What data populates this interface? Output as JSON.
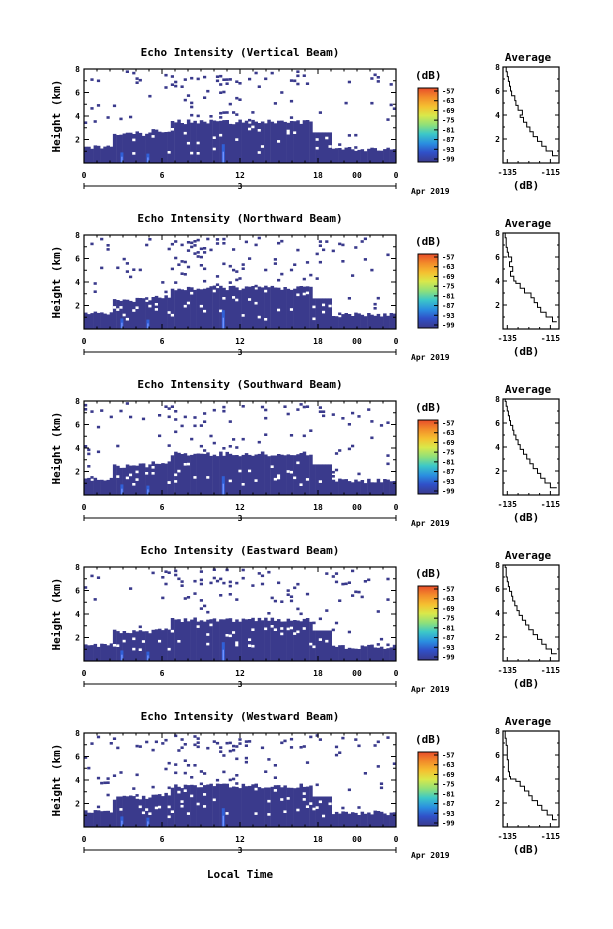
{
  "chart_data": [
    {
      "type": "heatmap",
      "title": "Echo Intensity (Vertical Beam)",
      "ylabel": "Height (km)",
      "ylim": [
        0,
        8
      ],
      "yticks": [
        "2",
        "4",
        "6",
        "8"
      ],
      "xlim": [
        0,
        24
      ],
      "xticks": [
        "0",
        "6",
        "12",
        "18",
        "00",
        "0"
      ],
      "date_tick": "3",
      "date_label": "Apr 2019",
      "colorbar": {
        "unit": "(dB)",
        "ticks": [
          "-57",
          "-63",
          "-69",
          "-75",
          "-81",
          "-87",
          "-93",
          "-99"
        ]
      },
      "average": {
        "title": "Average",
        "xlabel": "(dB)",
        "xticks": [
          "-135",
          "-115"
        ],
        "yticks": [
          "2",
          "4",
          "6",
          "8"
        ],
        "xlim": [
          -137,
          -111
        ],
        "profile": [
          [
            -111.5,
            0.6
          ],
          [
            -114,
            1.0
          ],
          [
            -117,
            1.4
          ],
          [
            -119,
            1.8
          ],
          [
            -121,
            2.2
          ],
          [
            -123,
            2.6
          ],
          [
            -124.5,
            3.0
          ],
          [
            -126,
            3.4
          ],
          [
            -127.5,
            3.8
          ],
          [
            -129,
            4.0
          ],
          [
            -128,
            4.4
          ],
          [
            -130,
            4.8
          ],
          [
            -131,
            5.2
          ],
          [
            -131.5,
            5.6
          ],
          [
            -133,
            6.0
          ],
          [
            -133.5,
            6.4
          ],
          [
            -134,
            6.8
          ],
          [
            -134.5,
            7.2
          ],
          [
            -135,
            7.6
          ],
          [
            -135.5,
            8.0
          ]
        ]
      }
    },
    {
      "type": "heatmap",
      "title": "Echo Intensity (Northward Beam)",
      "ylabel": "Height (km)",
      "ylim": [
        0,
        8
      ],
      "yticks": [
        "2",
        "4",
        "6",
        "8"
      ],
      "xlim": [
        0,
        24
      ],
      "xticks": [
        "0",
        "6",
        "12",
        "18",
        "00",
        "0"
      ],
      "date_tick": "3",
      "date_label": "Apr 2019",
      "colorbar": {
        "unit": "(dB)",
        "ticks": [
          "-57",
          "-63",
          "-69",
          "-75",
          "-81",
          "-87",
          "-93",
          "-99"
        ]
      },
      "average": {
        "title": "Average",
        "xlabel": "(dB)",
        "xticks": [
          "-135",
          "-115"
        ],
        "yticks": [
          "2",
          "4",
          "6",
          "8"
        ],
        "xlim": [
          -137,
          -111
        ],
        "profile": [
          [
            -112,
            0.6
          ],
          [
            -114,
            1.0
          ],
          [
            -117,
            1.4
          ],
          [
            -119.5,
            1.8
          ],
          [
            -121,
            2.2
          ],
          [
            -122.5,
            2.6
          ],
          [
            -124,
            3.0
          ],
          [
            -127,
            3.4
          ],
          [
            -129,
            3.8
          ],
          [
            -131,
            4.0
          ],
          [
            -132,
            4.4
          ],
          [
            -133.5,
            4.8
          ],
          [
            -132.5,
            5.2
          ],
          [
            -134,
            5.6
          ],
          [
            -133,
            6.0
          ],
          [
            -134.5,
            6.4
          ],
          [
            -135,
            6.8
          ],
          [
            -135.5,
            7.2
          ],
          [
            -135.5,
            7.6
          ],
          [
            -136,
            8.0
          ]
        ]
      }
    },
    {
      "type": "heatmap",
      "title": "Echo Intensity (Southward Beam)",
      "ylabel": "Height (km)",
      "ylim": [
        0,
        8
      ],
      "yticks": [
        "2",
        "4",
        "6",
        "8"
      ],
      "xlim": [
        0,
        24
      ],
      "xticks": [
        "0",
        "6",
        "12",
        "18",
        "00",
        "0"
      ],
      "date_tick": "3",
      "date_label": "Apr 2019",
      "colorbar": {
        "unit": "(dB)",
        "ticks": [
          "-57",
          "-63",
          "-69",
          "-75",
          "-81",
          "-87",
          "-93",
          "-99"
        ]
      },
      "average": {
        "title": "Average",
        "xlabel": "(dB)",
        "xticks": [
          "-135",
          "-115"
        ],
        "yticks": [
          "2",
          "4",
          "6",
          "8"
        ],
        "xlim": [
          -137,
          -111
        ],
        "profile": [
          [
            -112,
            0.6
          ],
          [
            -115,
            1.0
          ],
          [
            -117.5,
            1.4
          ],
          [
            -119.5,
            1.8
          ],
          [
            -121,
            2.2
          ],
          [
            -123,
            2.6
          ],
          [
            -124.5,
            3.0
          ],
          [
            -126,
            3.4
          ],
          [
            -127.5,
            3.8
          ],
          [
            -129,
            4.2
          ],
          [
            -130,
            4.6
          ],
          [
            -131,
            5.0
          ],
          [
            -132,
            5.4
          ],
          [
            -132.5,
            5.8
          ],
          [
            -133.5,
            6.2
          ],
          [
            -134,
            6.6
          ],
          [
            -134.5,
            7.0
          ],
          [
            -135,
            7.4
          ],
          [
            -135.5,
            7.8
          ],
          [
            -136,
            8.0
          ]
        ]
      }
    },
    {
      "type": "heatmap",
      "title": "Echo Intensity (Eastward Beam)",
      "ylabel": "Height (km)",
      "ylim": [
        0,
        8
      ],
      "yticks": [
        "2",
        "4",
        "6",
        "8"
      ],
      "xlim": [
        0,
        24
      ],
      "xticks": [
        "0",
        "6",
        "12",
        "18",
        "00",
        "0"
      ],
      "date_tick": "3",
      "date_label": "Apr 2019",
      "colorbar": {
        "unit": "(dB)",
        "ticks": [
          "-57",
          "-63",
          "-69",
          "-75",
          "-81",
          "-87",
          "-93",
          "-99"
        ]
      },
      "average": {
        "title": "Average",
        "xlabel": "(dB)",
        "xticks": [
          "-135",
          "-115"
        ],
        "yticks": [
          "2",
          "4",
          "6",
          "8"
        ],
        "xlim": [
          -137,
          -111
        ],
        "profile": [
          [
            -112,
            0.6
          ],
          [
            -114.5,
            1.0
          ],
          [
            -117,
            1.4
          ],
          [
            -119,
            1.8
          ],
          [
            -121,
            2.2
          ],
          [
            -123,
            2.6
          ],
          [
            -125,
            3.0
          ],
          [
            -126.5,
            3.4
          ],
          [
            -128,
            3.8
          ],
          [
            -129.5,
            4.2
          ],
          [
            -130.5,
            4.6
          ],
          [
            -131.5,
            5.0
          ],
          [
            -132.5,
            5.4
          ],
          [
            -133,
            5.8
          ],
          [
            -134,
            6.2
          ],
          [
            -134.5,
            6.6
          ],
          [
            -135,
            7.0
          ],
          [
            -135.5,
            7.4
          ],
          [
            -135.5,
            7.8
          ],
          [
            -136,
            8.0
          ]
        ]
      }
    },
    {
      "type": "heatmap",
      "title": "Echo Intensity (Westward Beam)",
      "ylabel": "Height (km)",
      "ylim": [
        0,
        8
      ],
      "yticks": [
        "2",
        "4",
        "6",
        "8"
      ],
      "xlim": [
        0,
        24
      ],
      "xticks": [
        "0",
        "6",
        "12",
        "18",
        "00",
        "0"
      ],
      "date_tick": "3",
      "date_label": "Apr 2019",
      "xlabel": "Local Time",
      "colorbar": {
        "unit": "(dB)",
        "ticks": [
          "-57",
          "-63",
          "-69",
          "-75",
          "-81",
          "-87",
          "-93",
          "-99"
        ]
      },
      "average": {
        "title": "Average",
        "xlabel": "(dB)",
        "xticks": [
          "-135",
          "-115"
        ],
        "yticks": [
          "2",
          "4",
          "6",
          "8"
        ],
        "xlim": [
          -137,
          -111
        ],
        "profile": [
          [
            -112,
            0.6
          ],
          [
            -114,
            1.0
          ],
          [
            -116.5,
            1.4
          ],
          [
            -119,
            1.8
          ],
          [
            -121,
            2.2
          ],
          [
            -123.5,
            2.6
          ],
          [
            -125,
            3.0
          ],
          [
            -127,
            3.4
          ],
          [
            -129,
            3.8
          ],
          [
            -131,
            4.0
          ],
          [
            -133.5,
            4.2
          ],
          [
            -134,
            4.6
          ],
          [
            -134.5,
            5.0
          ],
          [
            -134.5,
            5.6
          ],
          [
            -135,
            6.2
          ],
          [
            -135,
            6.8
          ],
          [
            -135.5,
            7.4
          ],
          [
            -136,
            8.0
          ]
        ]
      }
    }
  ],
  "colors": {
    "echo_low": "#3a3a8c",
    "echo_mid": "#3060d8",
    "echo_high": "#7090ff",
    "colorbar_stops": [
      "#e84d2a",
      "#f28a2a",
      "#f5c030",
      "#d9e84a",
      "#8ee07a",
      "#3cc8c8",
      "#2a8ee0",
      "#3050c8",
      "#3a3a8c"
    ]
  }
}
